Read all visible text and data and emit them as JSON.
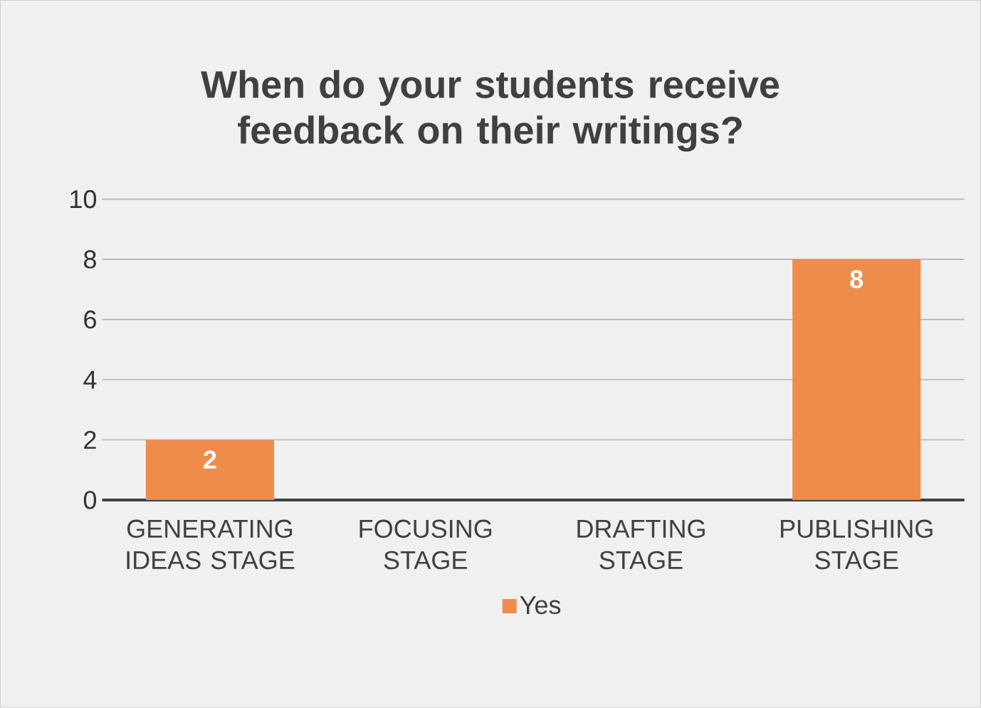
{
  "chart_data": {
    "type": "bar",
    "title": "When do your students receive feedback on their writings?",
    "categories": [
      "GENERATING IDEAS STAGE",
      "FOCUSING STAGE",
      "DRAFTING STAGE",
      "PUBLISHING STAGE"
    ],
    "series": [
      {
        "name": "Yes",
        "color": "#ee8c4c",
        "values": [
          2,
          0,
          0,
          8
        ],
        "value_labels": [
          "2",
          null,
          null,
          "8"
        ]
      }
    ],
    "ylim": [
      0,
      10
    ],
    "yticks": [
      0,
      2,
      4,
      6,
      8,
      10
    ],
    "grid": "y",
    "legend": "bottom"
  }
}
